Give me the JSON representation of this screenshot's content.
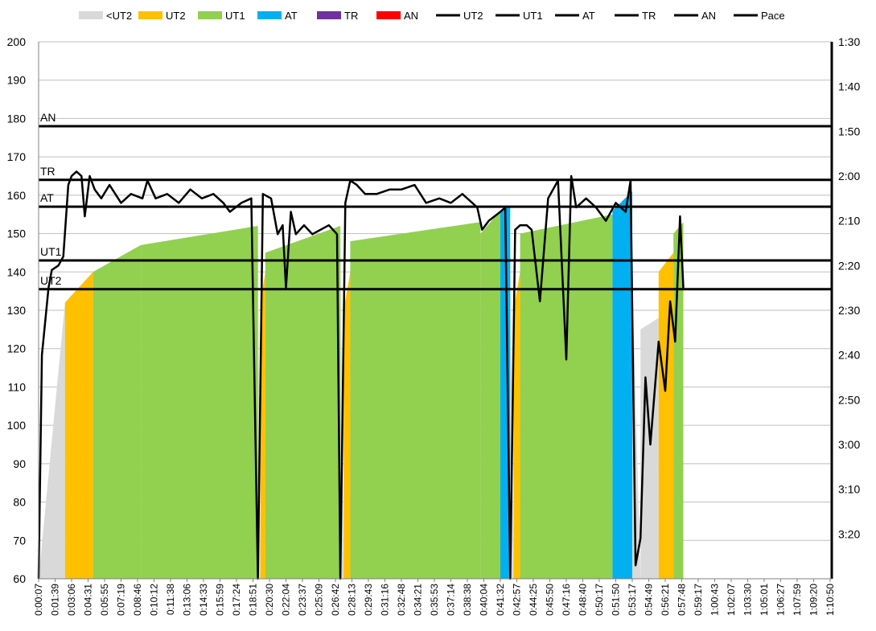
{
  "chart_data": {
    "type": "bar",
    "colors": {
      "<UT2": "#d9d9d9",
      "UT2": "#ffc000",
      "UT1": "#92d050",
      "AT": "#00b0f0",
      "TR": "#7030a0",
      "AN": "#ff0000",
      "line": "#000000",
      "grid": "#bfbfbf"
    },
    "legend": {
      "placement": "top",
      "entries": [
        {
          "name": "<UT2",
          "kind": "area"
        },
        {
          "name": "UT2",
          "kind": "area"
        },
        {
          "name": "UT1",
          "kind": "area"
        },
        {
          "name": "AT",
          "kind": "area"
        },
        {
          "name": "TR",
          "kind": "area"
        },
        {
          "name": "AN",
          "kind": "area"
        },
        {
          "name": "UT2",
          "kind": "line"
        },
        {
          "name": "UT1",
          "kind": "line"
        },
        {
          "name": "AT",
          "kind": "line"
        },
        {
          "name": "TR",
          "kind": "line"
        },
        {
          "name": "AN",
          "kind": "line"
        },
        {
          "name": "Pace",
          "kind": "line"
        }
      ]
    },
    "y_left": {
      "range": [
        60,
        200
      ],
      "ticks": [
        "60",
        "70",
        "80",
        "90",
        "100",
        "110",
        "120",
        "130",
        "140",
        "150",
        "160",
        "170",
        "180",
        "190",
        "200"
      ]
    },
    "y_right": {
      "range_seconds": [
        90,
        210
      ],
      "ticks": [
        "1:30",
        "1:40",
        "1:50",
        "2:00",
        "2:10",
        "2:20",
        "2:30",
        "2:40",
        "2:50",
        "3:00",
        "3:10",
        "3:20"
      ]
    },
    "x_ticks": [
      "0:00:07",
      "0:01:39",
      "0:03:06",
      "0:04:31",
      "0:05:55",
      "0:07:19",
      "0:08:46",
      "0:10:12",
      "0:11:38",
      "0:13:06",
      "0:14:33",
      "0:15:59",
      "0:17:24",
      "0:18:51",
      "0:20:30",
      "0:22:04",
      "0:23:37",
      "0:25:09",
      "0:26:42",
      "0:28:13",
      "0:29:43",
      "0:31:16",
      "0:32:48",
      "0:34:21",
      "0:35:53",
      "0:37:14",
      "0:38:38",
      "0:40:04",
      "0:41:32",
      "0:42:57",
      "0:44:25",
      "0:45:50",
      "0:47:16",
      "0:48:40",
      "0:50:17",
      "0:51:50",
      "0:53:17",
      "0:54:49",
      "0:56:21",
      "0:57:48",
      "0:59:17",
      "1:00:43",
      "1:02:07",
      "1:03:30",
      "1:05:01",
      "1:06:27",
      "1:07:59",
      "1:09:20",
      "1:10:50"
    ],
    "thresholds": [
      {
        "name": "UT2",
        "value": 135.5
      },
      {
        "name": "UT1",
        "value": 143
      },
      {
        "name": "AT",
        "value": 157
      },
      {
        "name": "TR",
        "value": 164
      },
      {
        "name": "AN",
        "value": 178
      }
    ],
    "heart_rate_segments": [
      {
        "x": [
          0,
          1.6
        ],
        "hr": [
          60,
          132
        ],
        "zone": "<UT2"
      },
      {
        "x": [
          1.6,
          3.3
        ],
        "hr": [
          132,
          140
        ],
        "zone": "UT2"
      },
      {
        "x": [
          3.3,
          6.2
        ],
        "hr": [
          140,
          147
        ],
        "zone": "UT1"
      },
      {
        "x": [
          6.2,
          13.3
        ],
        "hr": [
          147,
          152
        ],
        "zone": "UT1"
      },
      {
        "x": [
          13.3,
          13.45
        ],
        "hr": [
          152,
          60
        ],
        "zone": "<UT2"
      },
      {
        "x": [
          13.45,
          13.75
        ],
        "hr": [
          132,
          140
        ],
        "zone": "UT2"
      },
      {
        "x": [
          13.75,
          18.3
        ],
        "hr": [
          145,
          152
        ],
        "zone": "UT1"
      },
      {
        "x": [
          18.3,
          18.5
        ],
        "hr": [
          152,
          60
        ],
        "zone": "<UT2"
      },
      {
        "x": [
          18.5,
          18.9
        ],
        "hr": [
          130,
          140
        ],
        "zone": "UT2"
      },
      {
        "x": [
          18.9,
          26.8
        ],
        "hr": [
          148,
          153
        ],
        "zone": "UT1"
      },
      {
        "x": [
          26.8,
          28.0
        ],
        "hr": [
          150,
          156
        ],
        "zone": "UT1"
      },
      {
        "x": [
          28.0,
          28.6
        ],
        "hr": [
          156,
          157
        ],
        "zone": "AT"
      },
      {
        "x": [
          28.6,
          28.8
        ],
        "hr": [
          157,
          60
        ],
        "zone": "<UT2"
      },
      {
        "x": [
          28.8,
          29.2
        ],
        "hr": [
          130,
          140
        ],
        "zone": "UT2"
      },
      {
        "x": [
          29.2,
          34.8
        ],
        "hr": [
          150,
          155
        ],
        "zone": "UT1"
      },
      {
        "x": [
          34.8,
          36.0
        ],
        "hr": [
          156,
          161
        ],
        "zone": "AT"
      },
      {
        "x": [
          36.0,
          36.5
        ],
        "hr": [
          140,
          60
        ],
        "zone": "<UT2"
      },
      {
        "x": [
          36.5,
          37.6
        ],
        "hr": [
          125,
          128
        ],
        "zone": "<UT2"
      },
      {
        "x": [
          37.6,
          38.5
        ],
        "hr": [
          140,
          145
        ],
        "zone": "UT2"
      },
      {
        "x": [
          38.5,
          39.1
        ],
        "hr": [
          150,
          153
        ],
        "zone": "UT1"
      }
    ],
    "pace_path": [
      [
        0,
        210
      ],
      [
        0.2,
        160
      ],
      [
        0.6,
        145
      ],
      [
        0.8,
        141
      ],
      [
        1.2,
        140
      ],
      [
        1.5,
        138
      ],
      [
        1.8,
        122
      ],
      [
        2.0,
        120
      ],
      [
        2.3,
        119
      ],
      [
        2.6,
        120
      ],
      [
        2.8,
        129
      ],
      [
        3.1,
        120
      ],
      [
        3.4,
        123
      ],
      [
        3.8,
        125
      ],
      [
        4.3,
        122
      ],
      [
        5.0,
        126
      ],
      [
        5.6,
        124
      ],
      [
        6.3,
        125
      ],
      [
        6.6,
        121
      ],
      [
        7.1,
        125
      ],
      [
        7.8,
        124
      ],
      [
        8.5,
        126
      ],
      [
        9.2,
        123
      ],
      [
        9.9,
        125
      ],
      [
        10.6,
        124
      ],
      [
        11.2,
        126
      ],
      [
        11.6,
        128
      ],
      [
        12.3,
        126
      ],
      [
        12.9,
        125
      ],
      [
        13.3,
        210
      ],
      [
        13.6,
        124
      ],
      [
        14.1,
        125
      ],
      [
        14.5,
        133
      ],
      [
        14.8,
        131
      ],
      [
        15.0,
        145
      ],
      [
        15.3,
        128
      ],
      [
        15.6,
        133
      ],
      [
        16.1,
        131
      ],
      [
        16.6,
        133
      ],
      [
        17.1,
        132
      ],
      [
        17.6,
        131
      ],
      [
        18.1,
        133
      ],
      [
        18.3,
        210
      ],
      [
        18.6,
        126
      ],
      [
        18.9,
        121
      ],
      [
        19.3,
        122
      ],
      [
        19.8,
        124
      ],
      [
        20.5,
        124
      ],
      [
        21.3,
        123
      ],
      [
        22.0,
        123
      ],
      [
        22.8,
        122
      ],
      [
        23.5,
        126
      ],
      [
        24.3,
        125
      ],
      [
        25.0,
        126
      ],
      [
        25.7,
        124
      ],
      [
        26.6,
        127
      ],
      [
        26.9,
        132
      ],
      [
        27.3,
        130
      ],
      [
        28.0,
        128
      ],
      [
        28.3,
        127
      ],
      [
        28.6,
        210
      ],
      [
        28.9,
        132
      ],
      [
        29.2,
        131
      ],
      [
        29.6,
        131
      ],
      [
        29.9,
        132
      ],
      [
        30.4,
        148
      ],
      [
        30.9,
        125
      ],
      [
        31.5,
        121
      ],
      [
        32.0,
        161
      ],
      [
        32.3,
        120
      ],
      [
        32.6,
        127
      ],
      [
        33.2,
        125
      ],
      [
        33.8,
        127
      ],
      [
        34.4,
        130
      ],
      [
        35.0,
        126
      ],
      [
        35.6,
        128
      ],
      [
        35.9,
        121
      ],
      [
        36.2,
        207
      ],
      [
        36.5,
        201
      ],
      [
        36.8,
        165
      ],
      [
        37.1,
        180
      ],
      [
        37.6,
        157
      ],
      [
        38.0,
        168
      ],
      [
        38.3,
        148
      ],
      [
        38.6,
        157
      ],
      [
        38.9,
        129
      ],
      [
        39.1,
        145
      ]
    ]
  }
}
